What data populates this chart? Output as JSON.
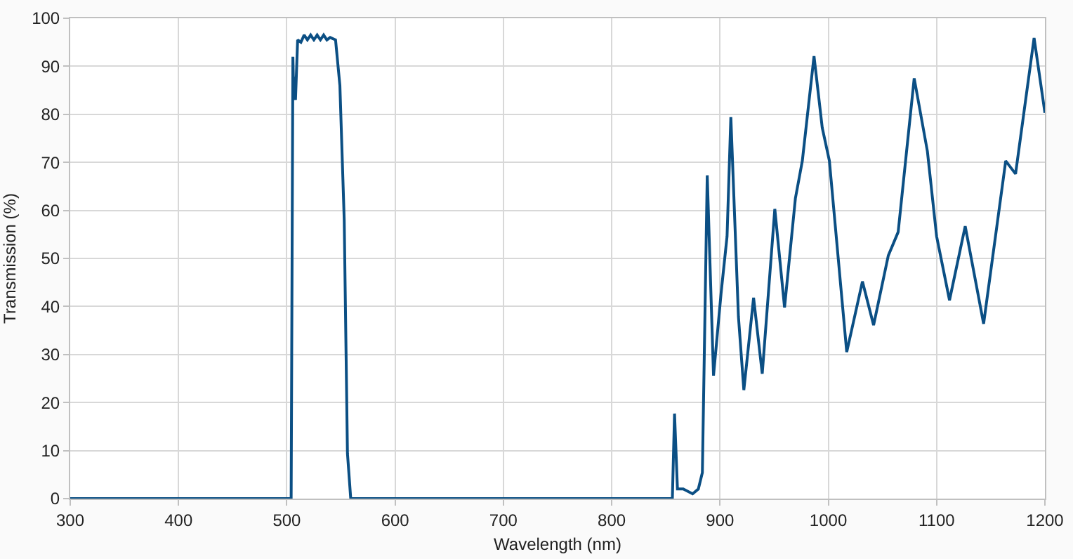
{
  "chart_data": {
    "type": "line",
    "xlabel": "Wavelength (nm)",
    "ylabel": "Transmission (%)",
    "x": [
      300,
      504,
      505.6,
      506,
      508,
      510,
      513,
      516,
      519,
      522,
      525,
      528,
      531,
      534,
      537,
      540,
      545,
      549,
      553,
      556,
      559,
      856,
      858,
      860.7,
      866,
      874.7,
      880,
      883.7,
      888.2,
      894,
      901,
      906.5,
      910,
      917,
      922,
      931,
      939,
      950.6,
      959.6,
      969.6,
      976,
      986.8,
      994.4,
      1001,
      1017,
      1031.5,
      1041.8,
      1055.4,
      1064.5,
      1079.3,
      1091.5,
      1100,
      1111.9,
      1126.4,
      1143.4,
      1163.8,
      1172.9,
      1190,
      1200
    ],
    "series": [
      {
        "color": "#0b4f84",
        "values": [
          0,
          0,
          92,
          88,
          83,
          95.5,
          95,
          96.5,
          95.5,
          96.5,
          95.5,
          96.5,
          95.5,
          96.5,
          95.5,
          96,
          95.5,
          86,
          58,
          9.4,
          0,
          0,
          17.7,
          2,
          2,
          1,
          2,
          5.4,
          67.3,
          25.6,
          42.8,
          54.6,
          79.4,
          37.9,
          22.6,
          41.8,
          26,
          60.3,
          39.8,
          62.5,
          70.3,
          92.1,
          77.2,
          70.3,
          30.5,
          45.2,
          36.1,
          50.6,
          55.5,
          87.5,
          72.3,
          54.6,
          41.3,
          56.7,
          36.4,
          70.3,
          67.6,
          95.9,
          80.3
        ]
      }
    ],
    "xlim": [
      300,
      1200
    ],
    "xticks": [
      300,
      400,
      500,
      600,
      700,
      800,
      900,
      1000,
      1100,
      1200
    ],
    "ylim": [
      0,
      100
    ],
    "yticks": [
      0,
      10,
      20,
      30,
      40,
      50,
      60,
      70,
      80,
      90,
      100
    ],
    "grid": true,
    "marker": "none",
    "line_style": "solid"
  }
}
